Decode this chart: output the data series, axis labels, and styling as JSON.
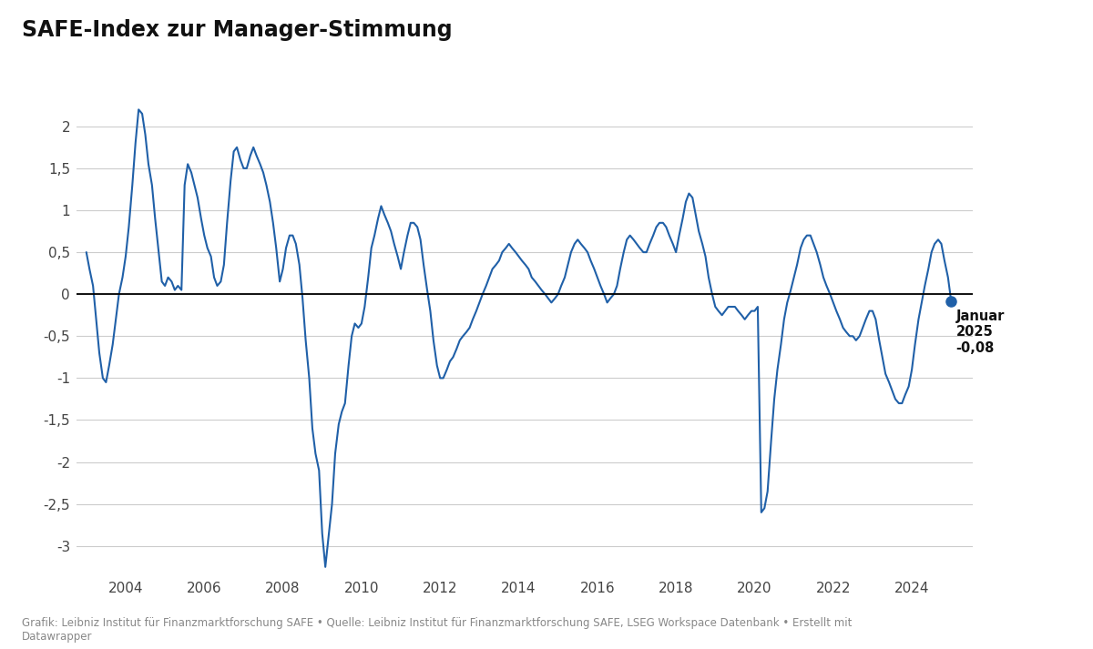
{
  "title": "SAFE-Index zur Manager-Stimmung",
  "line_color": "#2060a8",
  "background_color": "#ffffff",
  "grid_color": "#cccccc",
  "zero_line_color": "#000000",
  "footer_text": "Grafik: Leibniz Institut für Finanzmarktforschung SAFE • Quelle: Leibniz Institut für Finanzmarktforschung SAFE, LSEG Workspace Datenbank • Erstellt mit\nDatawrapper",
  "ylim": [
    -3.3,
    2.5
  ],
  "yticks": [
    -3.0,
    -2.5,
    -2.0,
    -1.5,
    -1.0,
    -0.5,
    0.0,
    0.5,
    1.0,
    1.5,
    2.0
  ],
  "ytick_labels": [
    "-3",
    "-2,5",
    "-2",
    "-1,5",
    "-1",
    "-0,5",
    "0",
    "0,5",
    "1",
    "1,5",
    "2"
  ],
  "xtick_years": [
    2004,
    2006,
    2008,
    2010,
    2012,
    2014,
    2016,
    2018,
    2020,
    2022,
    2024
  ],
  "data": [
    [
      2003.0,
      0.5
    ],
    [
      2003.08,
      0.3
    ],
    [
      2003.17,
      0.1
    ],
    [
      2003.25,
      -0.3
    ],
    [
      2003.33,
      -0.7
    ],
    [
      2003.42,
      -1.0
    ],
    [
      2003.5,
      -1.05
    ],
    [
      2003.58,
      -0.85
    ],
    [
      2003.67,
      -0.6
    ],
    [
      2003.75,
      -0.3
    ],
    [
      2003.83,
      0.0
    ],
    [
      2003.92,
      0.2
    ],
    [
      2004.0,
      0.45
    ],
    [
      2004.08,
      0.8
    ],
    [
      2004.17,
      1.3
    ],
    [
      2004.25,
      1.8
    ],
    [
      2004.33,
      2.2
    ],
    [
      2004.42,
      2.15
    ],
    [
      2004.5,
      1.9
    ],
    [
      2004.58,
      1.55
    ],
    [
      2004.67,
      1.3
    ],
    [
      2004.75,
      0.9
    ],
    [
      2004.83,
      0.55
    ],
    [
      2004.92,
      0.15
    ],
    [
      2005.0,
      0.1
    ],
    [
      2005.08,
      0.2
    ],
    [
      2005.17,
      0.15
    ],
    [
      2005.25,
      0.05
    ],
    [
      2005.33,
      0.1
    ],
    [
      2005.42,
      0.05
    ],
    [
      2005.5,
      1.3
    ],
    [
      2005.58,
      1.55
    ],
    [
      2005.67,
      1.45
    ],
    [
      2005.75,
      1.3
    ],
    [
      2005.83,
      1.15
    ],
    [
      2005.92,
      0.9
    ],
    [
      2006.0,
      0.7
    ],
    [
      2006.08,
      0.55
    ],
    [
      2006.17,
      0.45
    ],
    [
      2006.25,
      0.2
    ],
    [
      2006.33,
      0.1
    ],
    [
      2006.42,
      0.15
    ],
    [
      2006.5,
      0.35
    ],
    [
      2006.58,
      0.85
    ],
    [
      2006.67,
      1.35
    ],
    [
      2006.75,
      1.7
    ],
    [
      2006.83,
      1.75
    ],
    [
      2006.92,
      1.6
    ],
    [
      2007.0,
      1.5
    ],
    [
      2007.08,
      1.5
    ],
    [
      2007.17,
      1.65
    ],
    [
      2007.25,
      1.75
    ],
    [
      2007.33,
      1.65
    ],
    [
      2007.42,
      1.55
    ],
    [
      2007.5,
      1.45
    ],
    [
      2007.58,
      1.3
    ],
    [
      2007.67,
      1.1
    ],
    [
      2007.75,
      0.85
    ],
    [
      2007.83,
      0.55
    ],
    [
      2007.92,
      0.15
    ],
    [
      2008.0,
      0.3
    ],
    [
      2008.08,
      0.55
    ],
    [
      2008.17,
      0.7
    ],
    [
      2008.25,
      0.7
    ],
    [
      2008.33,
      0.6
    ],
    [
      2008.42,
      0.35
    ],
    [
      2008.5,
      -0.05
    ],
    [
      2008.58,
      -0.55
    ],
    [
      2008.67,
      -1.0
    ],
    [
      2008.75,
      -1.6
    ],
    [
      2008.83,
      -1.9
    ],
    [
      2008.92,
      -2.1
    ],
    [
      2009.0,
      -2.85
    ],
    [
      2009.08,
      -3.25
    ],
    [
      2009.17,
      -2.85
    ],
    [
      2009.25,
      -2.5
    ],
    [
      2009.33,
      -1.9
    ],
    [
      2009.42,
      -1.55
    ],
    [
      2009.5,
      -1.4
    ],
    [
      2009.58,
      -1.3
    ],
    [
      2009.67,
      -0.85
    ],
    [
      2009.75,
      -0.5
    ],
    [
      2009.83,
      -0.35
    ],
    [
      2009.92,
      -0.4
    ],
    [
      2010.0,
      -0.35
    ],
    [
      2010.08,
      -0.15
    ],
    [
      2010.17,
      0.2
    ],
    [
      2010.25,
      0.55
    ],
    [
      2010.33,
      0.7
    ],
    [
      2010.42,
      0.9
    ],
    [
      2010.5,
      1.05
    ],
    [
      2010.58,
      0.95
    ],
    [
      2010.67,
      0.85
    ],
    [
      2010.75,
      0.75
    ],
    [
      2010.83,
      0.6
    ],
    [
      2010.92,
      0.45
    ],
    [
      2011.0,
      0.3
    ],
    [
      2011.08,
      0.5
    ],
    [
      2011.17,
      0.7
    ],
    [
      2011.25,
      0.85
    ],
    [
      2011.33,
      0.85
    ],
    [
      2011.42,
      0.8
    ],
    [
      2011.5,
      0.65
    ],
    [
      2011.58,
      0.35
    ],
    [
      2011.67,
      0.05
    ],
    [
      2011.75,
      -0.2
    ],
    [
      2011.83,
      -0.55
    ],
    [
      2011.92,
      -0.85
    ],
    [
      2012.0,
      -1.0
    ],
    [
      2012.08,
      -1.0
    ],
    [
      2012.17,
      -0.9
    ],
    [
      2012.25,
      -0.8
    ],
    [
      2012.33,
      -0.75
    ],
    [
      2012.42,
      -0.65
    ],
    [
      2012.5,
      -0.55
    ],
    [
      2012.58,
      -0.5
    ],
    [
      2012.67,
      -0.45
    ],
    [
      2012.75,
      -0.4
    ],
    [
      2012.83,
      -0.3
    ],
    [
      2012.92,
      -0.2
    ],
    [
      2013.0,
      -0.1
    ],
    [
      2013.08,
      0.0
    ],
    [
      2013.17,
      0.1
    ],
    [
      2013.25,
      0.2
    ],
    [
      2013.33,
      0.3
    ],
    [
      2013.42,
      0.35
    ],
    [
      2013.5,
      0.4
    ],
    [
      2013.58,
      0.5
    ],
    [
      2013.67,
      0.55
    ],
    [
      2013.75,
      0.6
    ],
    [
      2013.83,
      0.55
    ],
    [
      2013.92,
      0.5
    ],
    [
      2014.0,
      0.45
    ],
    [
      2014.08,
      0.4
    ],
    [
      2014.17,
      0.35
    ],
    [
      2014.25,
      0.3
    ],
    [
      2014.33,
      0.2
    ],
    [
      2014.42,
      0.15
    ],
    [
      2014.5,
      0.1
    ],
    [
      2014.58,
      0.05
    ],
    [
      2014.67,
      0.0
    ],
    [
      2014.75,
      -0.05
    ],
    [
      2014.83,
      -0.1
    ],
    [
      2014.92,
      -0.05
    ],
    [
      2015.0,
      0.0
    ],
    [
      2015.08,
      0.1
    ],
    [
      2015.17,
      0.2
    ],
    [
      2015.25,
      0.35
    ],
    [
      2015.33,
      0.5
    ],
    [
      2015.42,
      0.6
    ],
    [
      2015.5,
      0.65
    ],
    [
      2015.58,
      0.6
    ],
    [
      2015.67,
      0.55
    ],
    [
      2015.75,
      0.5
    ],
    [
      2015.83,
      0.4
    ],
    [
      2015.92,
      0.3
    ],
    [
      2016.0,
      0.2
    ],
    [
      2016.08,
      0.1
    ],
    [
      2016.17,
      0.0
    ],
    [
      2016.25,
      -0.1
    ],
    [
      2016.33,
      -0.05
    ],
    [
      2016.42,
      0.0
    ],
    [
      2016.5,
      0.1
    ],
    [
      2016.58,
      0.3
    ],
    [
      2016.67,
      0.5
    ],
    [
      2016.75,
      0.65
    ],
    [
      2016.83,
      0.7
    ],
    [
      2016.92,
      0.65
    ],
    [
      2017.0,
      0.6
    ],
    [
      2017.08,
      0.55
    ],
    [
      2017.17,
      0.5
    ],
    [
      2017.25,
      0.5
    ],
    [
      2017.33,
      0.6
    ],
    [
      2017.42,
      0.7
    ],
    [
      2017.5,
      0.8
    ],
    [
      2017.58,
      0.85
    ],
    [
      2017.67,
      0.85
    ],
    [
      2017.75,
      0.8
    ],
    [
      2017.83,
      0.7
    ],
    [
      2017.92,
      0.6
    ],
    [
      2018.0,
      0.5
    ],
    [
      2018.08,
      0.7
    ],
    [
      2018.17,
      0.9
    ],
    [
      2018.25,
      1.1
    ],
    [
      2018.33,
      1.2
    ],
    [
      2018.42,
      1.15
    ],
    [
      2018.5,
      0.95
    ],
    [
      2018.58,
      0.75
    ],
    [
      2018.67,
      0.6
    ],
    [
      2018.75,
      0.45
    ],
    [
      2018.83,
      0.2
    ],
    [
      2018.92,
      0.0
    ],
    [
      2019.0,
      -0.15
    ],
    [
      2019.08,
      -0.2
    ],
    [
      2019.17,
      -0.25
    ],
    [
      2019.25,
      -0.2
    ],
    [
      2019.33,
      -0.15
    ],
    [
      2019.42,
      -0.15
    ],
    [
      2019.5,
      -0.15
    ],
    [
      2019.58,
      -0.2
    ],
    [
      2019.67,
      -0.25
    ],
    [
      2019.75,
      -0.3
    ],
    [
      2019.83,
      -0.25
    ],
    [
      2019.92,
      -0.2
    ],
    [
      2020.0,
      -0.2
    ],
    [
      2020.08,
      -0.15
    ],
    [
      2020.17,
      -2.6
    ],
    [
      2020.25,
      -2.55
    ],
    [
      2020.33,
      -2.35
    ],
    [
      2020.42,
      -1.75
    ],
    [
      2020.5,
      -1.25
    ],
    [
      2020.58,
      -0.9
    ],
    [
      2020.67,
      -0.6
    ],
    [
      2020.75,
      -0.3
    ],
    [
      2020.83,
      -0.1
    ],
    [
      2020.92,
      0.05
    ],
    [
      2021.0,
      0.2
    ],
    [
      2021.08,
      0.35
    ],
    [
      2021.17,
      0.55
    ],
    [
      2021.25,
      0.65
    ],
    [
      2021.33,
      0.7
    ],
    [
      2021.42,
      0.7
    ],
    [
      2021.5,
      0.6
    ],
    [
      2021.58,
      0.5
    ],
    [
      2021.67,
      0.35
    ],
    [
      2021.75,
      0.2
    ],
    [
      2021.83,
      0.1
    ],
    [
      2021.92,
      0.0
    ],
    [
      2022.0,
      -0.1
    ],
    [
      2022.08,
      -0.2
    ],
    [
      2022.17,
      -0.3
    ],
    [
      2022.25,
      -0.4
    ],
    [
      2022.33,
      -0.45
    ],
    [
      2022.42,
      -0.5
    ],
    [
      2022.5,
      -0.5
    ],
    [
      2022.58,
      -0.55
    ],
    [
      2022.67,
      -0.5
    ],
    [
      2022.75,
      -0.4
    ],
    [
      2022.83,
      -0.3
    ],
    [
      2022.92,
      -0.2
    ],
    [
      2023.0,
      -0.2
    ],
    [
      2023.08,
      -0.3
    ],
    [
      2023.17,
      -0.55
    ],
    [
      2023.25,
      -0.75
    ],
    [
      2023.33,
      -0.95
    ],
    [
      2023.42,
      -1.05
    ],
    [
      2023.5,
      -1.15
    ],
    [
      2023.58,
      -1.25
    ],
    [
      2023.67,
      -1.3
    ],
    [
      2023.75,
      -1.3
    ],
    [
      2023.83,
      -1.2
    ],
    [
      2023.92,
      -1.1
    ],
    [
      2024.0,
      -0.9
    ],
    [
      2024.08,
      -0.6
    ],
    [
      2024.17,
      -0.3
    ],
    [
      2024.25,
      -0.1
    ],
    [
      2024.33,
      0.1
    ],
    [
      2024.42,
      0.3
    ],
    [
      2024.5,
      0.5
    ],
    [
      2024.58,
      0.6
    ],
    [
      2024.67,
      0.65
    ],
    [
      2024.75,
      0.6
    ],
    [
      2024.83,
      0.4
    ],
    [
      2024.92,
      0.2
    ],
    [
      2025.0,
      -0.08
    ]
  ]
}
